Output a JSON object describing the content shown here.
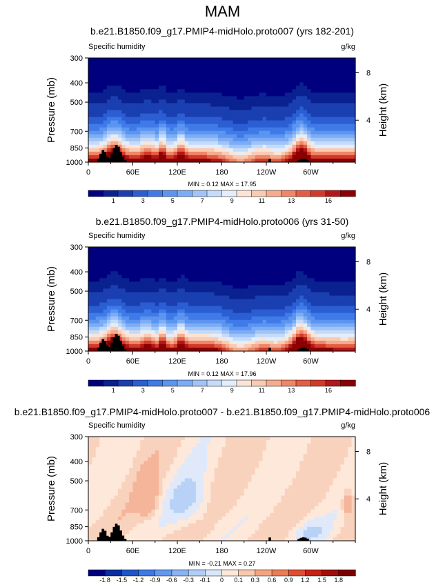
{
  "page_title": "MAM",
  "colors": {
    "abs_scale": [
      "#00007f",
      "#0a2190",
      "#1a3fb0",
      "#2a5ed2",
      "#3f7ae8",
      "#5b95f0",
      "#7cacf5",
      "#a0c4f8",
      "#c4dbfa",
      "#e4eefa",
      "#fbe4d6",
      "#f9cbb3",
      "#f5ab8e",
      "#ef8667",
      "#e45e44",
      "#d13a2a",
      "#b2181b",
      "#8b0000"
    ],
    "diff_scale": [
      "#00007f",
      "#0a2fa0",
      "#1f55c8",
      "#3c78e6",
      "#6298ee",
      "#8ab3f3",
      "#b2cdf7",
      "#d9e6fa",
      "#fde7d8",
      "#f9c9ae",
      "#f4a482",
      "#ec7c56",
      "#de4e32",
      "#c52218",
      "#a00d0d",
      "#7d0000"
    ],
    "topo": "#000000"
  },
  "chart_data": [
    {
      "type": "heatmap",
      "title": "b.e21.B1850.f09_g17.PMIP4-midHolo.proto007 (yrs 182-201)",
      "left_label": "Specific humidity",
      "right_label": "g/kg",
      "ylabel": "Pressure (mb)",
      "y2label": "Height (km)",
      "x_ticks": [
        "0",
        "60E",
        "120E",
        "180",
        "120W",
        "60W"
      ],
      "y_ticks": [
        "300",
        "400",
        "500",
        "700",
        "850",
        "1000"
      ],
      "y2_ticks": [
        "8",
        "4"
      ],
      "x_range": [
        0,
        360
      ],
      "y_range_mb": [
        300,
        1000
      ],
      "stats": "MIN =  0.12  MAX =  17.95",
      "min": 0.12,
      "max": 17.95,
      "colorbar_labels": [
        "1",
        "3",
        "5",
        "7",
        "9",
        "11",
        "13",
        "16"
      ],
      "field": "abs"
    },
    {
      "type": "heatmap",
      "title": "b.e21.B1850.f09_g17.PMIP4-midHolo.proto006 (yrs 31-50)",
      "left_label": "Specific humidity",
      "right_label": "g/kg",
      "ylabel": "Pressure (mb)",
      "y2label": "Height (km)",
      "x_ticks": [
        "0",
        "60E",
        "120E",
        "180",
        "120W",
        "60W"
      ],
      "y_ticks": [
        "300",
        "400",
        "500",
        "700",
        "850",
        "1000"
      ],
      "y2_ticks": [
        "8",
        "4"
      ],
      "x_range": [
        0,
        360
      ],
      "y_range_mb": [
        300,
        1000
      ],
      "stats": "MIN =  0.12  MAX =  17.96",
      "min": 0.12,
      "max": 17.96,
      "colorbar_labels": [
        "1",
        "3",
        "5",
        "7",
        "9",
        "11",
        "13",
        "16"
      ],
      "field": "abs"
    },
    {
      "type": "heatmap",
      "title": "b.e21.B1850.f09_g17.PMIP4-midHolo.proto007 - b.e21.B1850.f09_g17.PMIP4-midHolo.proto006",
      "left_label": "Specific humidity",
      "right_label": "g/kg",
      "ylabel": "Pressure (mb)",
      "y2label": "Height (km)",
      "x_ticks": [
        "0",
        "60E",
        "120E",
        "180",
        "120W",
        "60W"
      ],
      "y_ticks": [
        "300",
        "400",
        "500",
        "700",
        "850",
        "1000"
      ],
      "y2_ticks": [
        "8",
        "4"
      ],
      "x_range": [
        0,
        360
      ],
      "y_range_mb": [
        300,
        1000
      ],
      "stats": "MIN = -0.21  MAX =  0.27",
      "min": -0.21,
      "max": 0.27,
      "colorbar_labels": [
        "-1.8",
        "-1.5",
        "-1.2",
        "-0.9",
        "-0.6",
        "-0.3",
        "-0.1",
        "0",
        "0.1",
        "0.3",
        "0.6",
        "0.9",
        "1.2",
        "1.5",
        "1.8"
      ],
      "field": "diff"
    }
  ]
}
